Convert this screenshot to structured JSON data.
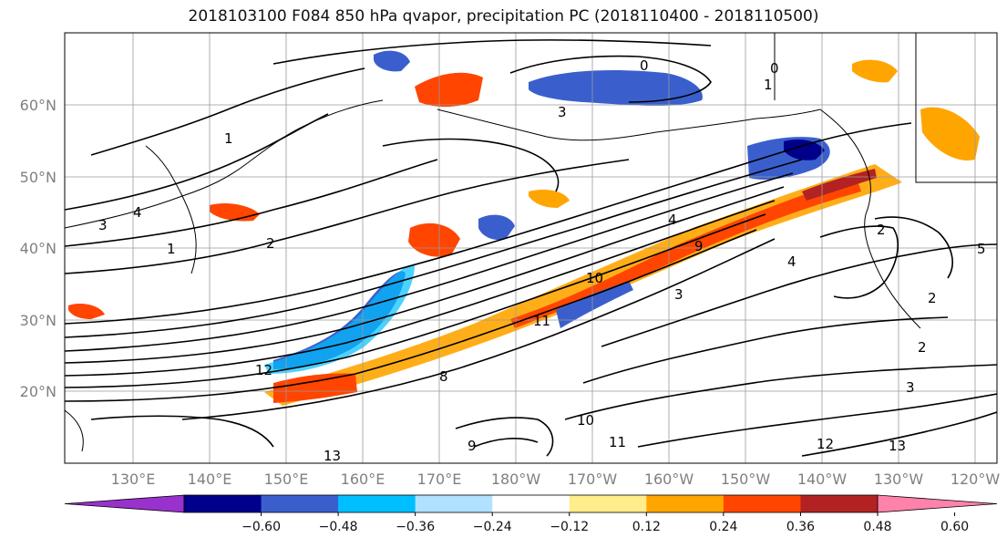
{
  "title": "2018103100 F084 850 hPa qvapor, precipitation PC (2018110400 - 2018110500)",
  "lat_labels": [
    "60°N",
    "50°N",
    "40°N",
    "30°N",
    "20°N"
  ],
  "lon_labels": [
    "130°E",
    "140°E",
    "150°E",
    "160°E",
    "170°E",
    "180°W",
    "170°W",
    "160°W",
    "150°W",
    "140°W",
    "130°W",
    "120°W"
  ],
  "colorbar": {
    "colors": [
      "#9932cc",
      "#00008b",
      "#3a5fcd",
      "#00bfff",
      "#b0e2ff",
      "#ffffff",
      "#ffec8b",
      "#ffa500",
      "#ff4500",
      "#b22222",
      "#ff82ab"
    ],
    "ticks": [
      "−0.60",
      "−0.48",
      "−0.36",
      "−0.24",
      "−0.12",
      "0.12",
      "0.24",
      "0.36",
      "0.48",
      "0.60"
    ]
  },
  "contour_labels": [
    "0",
    "0",
    "1",
    "1",
    "1",
    "2",
    "2",
    "2",
    "2",
    "3",
    "3",
    "3",
    "3",
    "4",
    "4",
    "4",
    "5",
    "8",
    "9",
    "9",
    "10",
    "10",
    "11",
    "11",
    "12",
    "12",
    "13",
    "13"
  ]
}
